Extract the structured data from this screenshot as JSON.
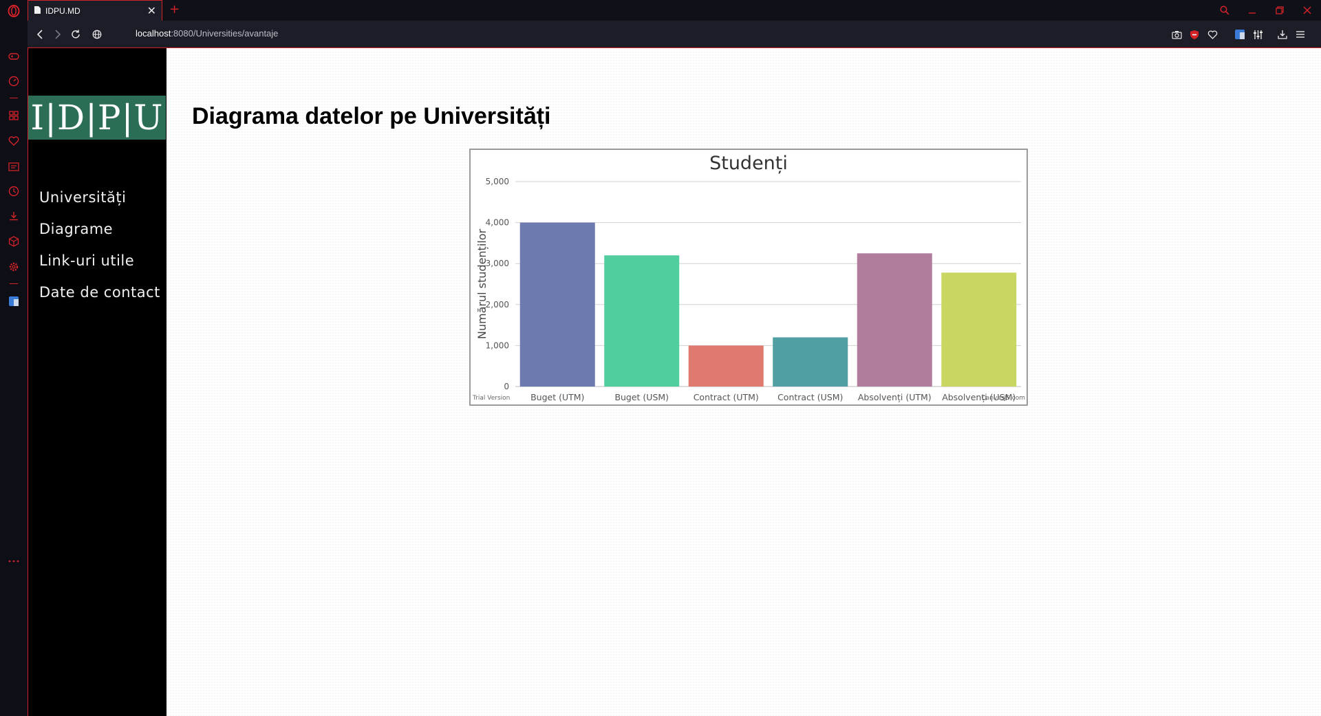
{
  "browser": {
    "tab_title": "IDPU.MD",
    "url_host": "localhost",
    "url_rest": ":8080/Universities/avantaje"
  },
  "site": {
    "logo_text": "I|D|P|U",
    "menu": [
      {
        "label": "Universități"
      },
      {
        "label": "Diagrame"
      },
      {
        "label": "Link-uri utile"
      },
      {
        "label": "Date de contact"
      }
    ]
  },
  "page": {
    "title": "Diagrama datelor pe Universități"
  },
  "colors": {
    "accent": "#d3222a",
    "logo_bg": "#2c6e55"
  },
  "chart_data": {
    "type": "bar",
    "title": "Studenți",
    "xlabel": "",
    "ylabel": "Numărul studenților",
    "ylim": [
      0,
      5000
    ],
    "yticks": [
      0,
      1000,
      2000,
      3000,
      4000,
      5000
    ],
    "ytick_labels": [
      "0",
      "1,000",
      "2,000",
      "3,000",
      "4,000",
      "5,000"
    ],
    "grid": true,
    "categories": [
      "Buget (UTM)",
      "Buget (USM)",
      "Contract (UTM)",
      "Contract (USM)",
      "Absolvenți (UTM)",
      "Absolvenți (USM)"
    ],
    "values": [
      4000,
      3200,
      1000,
      1200,
      3250,
      2780
    ],
    "colors": [
      "#6d7aaf",
      "#51ce9e",
      "#e07a70",
      "#4f9fa3",
      "#b07e9c",
      "#cad662"
    ],
    "watermark_left": "Trial Version",
    "watermark_right": "CanvasJS.com"
  }
}
